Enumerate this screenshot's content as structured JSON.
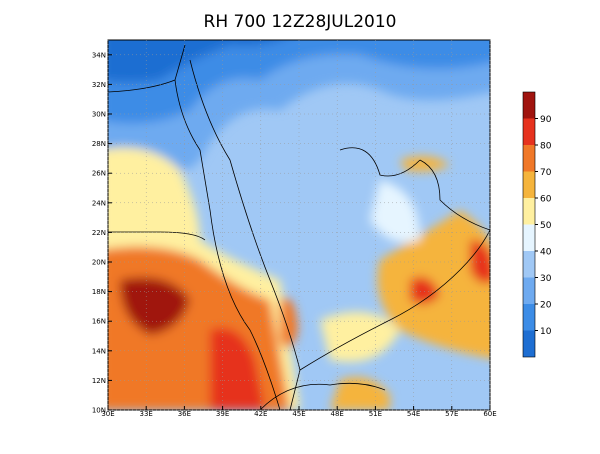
{
  "map": {
    "title": "RH 700 12Z28JUL2010",
    "xlim": [
      30,
      60
    ],
    "ylim": [
      10,
      35
    ],
    "grid": true,
    "xticks": [
      {
        "value": 30,
        "label": "30E"
      },
      {
        "value": 33,
        "label": "33E"
      },
      {
        "value": 36,
        "label": "36E"
      },
      {
        "value": 39,
        "label": "39E"
      },
      {
        "value": 42,
        "label": "42E"
      },
      {
        "value": 45,
        "label": "45E"
      },
      {
        "value": 48,
        "label": "48E"
      },
      {
        "value": 51,
        "label": "51E"
      },
      {
        "value": 54,
        "label": "54E"
      },
      {
        "value": 57,
        "label": "57E"
      },
      {
        "value": 60,
        "label": "60E"
      }
    ],
    "yticks": [
      {
        "value": 10,
        "label": "10N"
      },
      {
        "value": 12,
        "label": "12N"
      },
      {
        "value": 14,
        "label": "14N"
      },
      {
        "value": 16,
        "label": "16N"
      },
      {
        "value": 18,
        "label": "18N"
      },
      {
        "value": 20,
        "label": "20N"
      },
      {
        "value": 22,
        "label": "22N"
      },
      {
        "value": 24,
        "label": "24N"
      },
      {
        "value": 26,
        "label": "26N"
      },
      {
        "value": 28,
        "label": "28N"
      },
      {
        "value": 30,
        "label": "30N"
      },
      {
        "value": 32,
        "label": "32N"
      },
      {
        "value": 34,
        "label": "34N"
      }
    ],
    "colorbar": {
      "levels": [
        10,
        20,
        30,
        40,
        50,
        60,
        70,
        80,
        90
      ],
      "colors": [
        "#1e6ed2",
        "#3c8ce6",
        "#6eaaf0",
        "#a0c8f5",
        "#e6f5ff",
        "#fff0a0",
        "#f5b43c",
        "#f07828",
        "#e6321e",
        "#a0140f"
      ]
    }
  }
}
